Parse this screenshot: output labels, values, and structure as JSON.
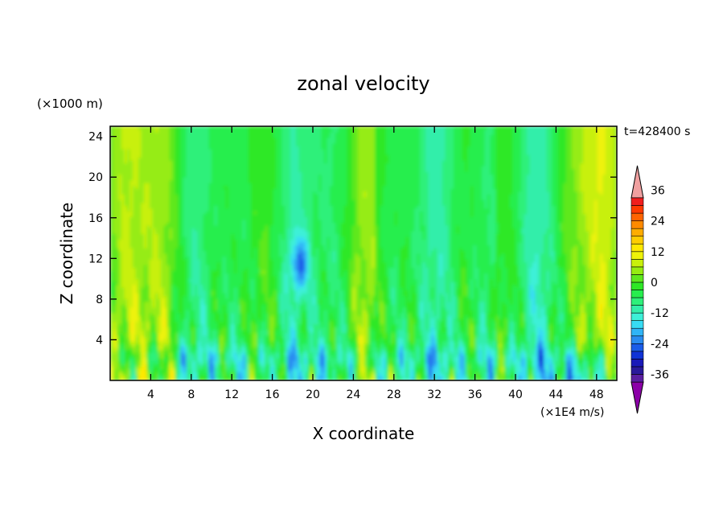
{
  "chart_data": {
    "type": "heatmap",
    "title": "zonal velocity",
    "xlabel": "X coordinate",
    "ylabel": "Z coordinate",
    "y_unit_label": "(×1000 m)",
    "x_unit_label": "(×1E4 m/s)",
    "time_label": "t=428400 s",
    "xlim": [
      0,
      50
    ],
    "ylim": [
      0,
      25
    ],
    "x_ticks": [
      4,
      8,
      12,
      16,
      20,
      24,
      28,
      32,
      36,
      40,
      44,
      48
    ],
    "y_ticks": [
      4,
      8,
      12,
      16,
      20,
      24
    ],
    "colorbar": {
      "levels": [
        -42,
        -39,
        -36,
        -33,
        -30,
        -27,
        -24,
        -21,
        -18,
        -15,
        -12,
        -9,
        -6,
        -3,
        0,
        3,
        6,
        9,
        12,
        15,
        18,
        21,
        24,
        27,
        30,
        33,
        36,
        39
      ],
      "labels": [
        36,
        24,
        12,
        0,
        -12,
        -24,
        -36
      ],
      "colors": [
        "#8c00a8",
        "#5a1fa0",
        "#2a1a9a",
        "#1a1ab8",
        "#1033d6",
        "#1a5ce8",
        "#2a8cf0",
        "#30b4f6",
        "#37dcf4",
        "#3df0d8",
        "#33eeaa",
        "#2ef07a",
        "#27ee4e",
        "#2ee826",
        "#5ee81e",
        "#96ec12",
        "#c8f00c",
        "#eef208",
        "#ffe800",
        "#ffcc00",
        "#ffac00",
        "#ff8a00",
        "#ff6400",
        "#ff3a00",
        "#f01e1e",
        "#f0a0a0"
      ]
    },
    "field_description": "zonal velocity in x–z plane; mostly green/cyan (-12 to 6) aloft, yellow (9 to 18) near x≈44–50, negative blue cores near x≈18,z≈10 and along lower boundary"
  }
}
